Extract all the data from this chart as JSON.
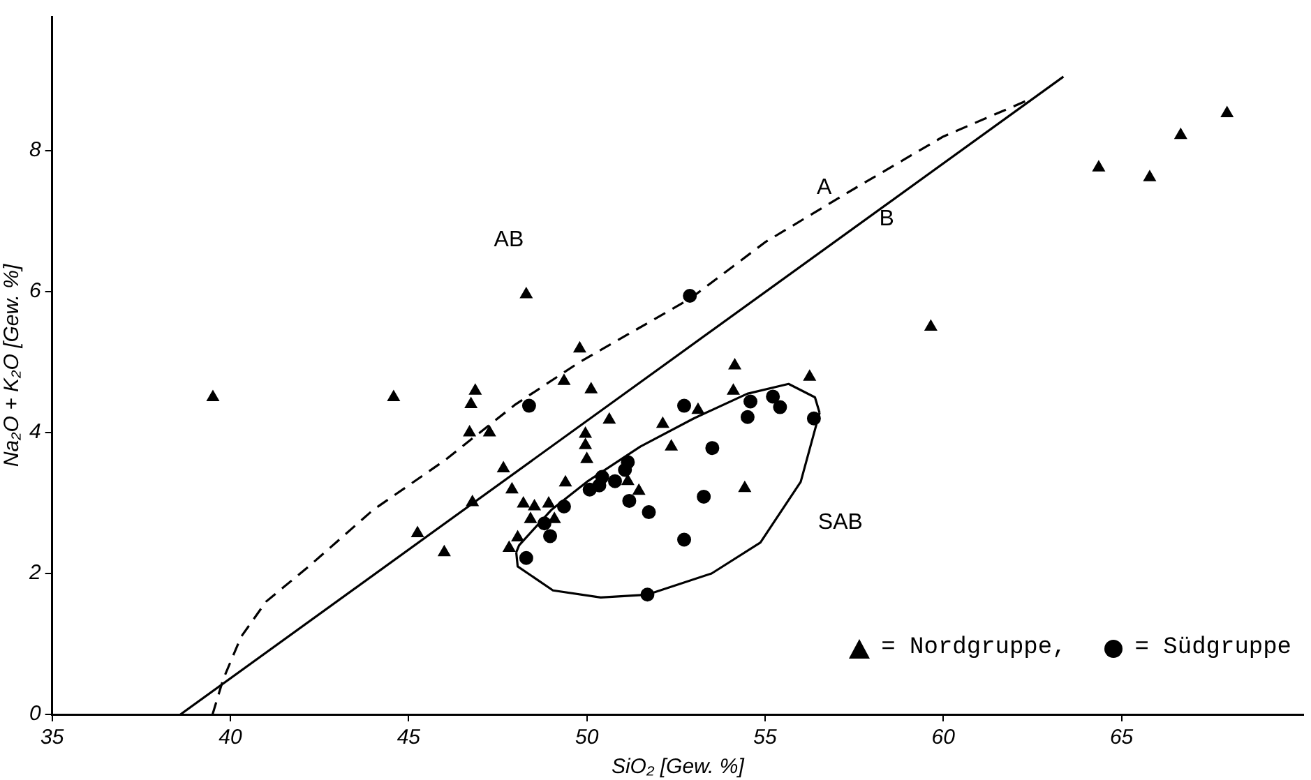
{
  "chart_data": {
    "type": "scatter",
    "xlabel": "SiO₂ [Gew. %]",
    "ylabel": "Na₂O + K₂O [Gew. %]",
    "xlim": [
      35,
      70.1
    ],
    "ylim": [
      0,
      9.9
    ],
    "xticks": [
      35,
      40,
      45,
      50,
      55,
      60,
      65
    ],
    "yticks": [
      0,
      2,
      4,
      6,
      8
    ],
    "grid": false,
    "legend": "bottom right",
    "series": [
      {
        "name": "= Nordgruppe,",
        "type": "scatter",
        "marker": "triangle",
        "color": "#000000",
        "x": [
          39.51,
          44.58,
          46.87,
          46.75,
          46.71,
          47.27,
          49.36,
          50.12,
          50.63,
          49.96,
          49.96,
          50.0,
          47.66,
          47.9,
          49.4,
          48.22,
          48.53,
          48.93,
          48.42,
          49.09,
          48.06,
          47.82,
          46.79,
          45.25,
          46.0,
          54.15,
          56.25,
          54.11,
          53.12,
          52.13,
          52.37,
          51.15,
          51.46,
          54.43,
          48.3,
          49.8,
          59.65,
          64.36,
          65.79,
          66.66,
          67.96
        ],
        "values": [
          4.5,
          4.5,
          4.59,
          4.4,
          4.0,
          4.0,
          4.73,
          4.61,
          4.18,
          3.98,
          3.82,
          3.62,
          3.49,
          3.19,
          3.29,
          2.99,
          2.95,
          2.99,
          2.77,
          2.77,
          2.51,
          2.36,
          3.01,
          2.57,
          2.3,
          4.95,
          4.79,
          4.59,
          4.32,
          4.12,
          3.8,
          3.31,
          3.17,
          3.21,
          5.96,
          5.19,
          5.5,
          7.76,
          7.62,
          8.22,
          8.53
        ]
      },
      {
        "name": "= Südgruppe",
        "type": "scatter",
        "marker": "circle",
        "color": "#000000",
        "x": [
          48.38,
          49.36,
          48.81,
          48.97,
          48.3,
          50.08,
          50.35,
          50.43,
          50.79,
          52.73,
          54.59,
          55.22,
          55.42,
          54.51,
          56.37,
          53.52,
          51.15,
          51.07,
          51.19,
          51.74,
          53.28,
          52.73,
          51.7,
          52.89
        ],
        "values": [
          4.38,
          2.95,
          2.71,
          2.53,
          2.22,
          3.19,
          3.25,
          3.37,
          3.31,
          4.38,
          4.44,
          4.51,
          4.36,
          4.22,
          4.2,
          3.78,
          3.58,
          3.47,
          3.03,
          2.87,
          3.09,
          2.48,
          1.7,
          5.94
        ]
      },
      {
        "type": "line",
        "line_style": "solid",
        "marker": "none",
        "color": "#000000",
        "x": [
          38.6,
          63.37
        ],
        "values": [
          0,
          9.05
        ]
      },
      {
        "type": "line",
        "line_style": "dashed",
        "marker": "none",
        "color": "#000000",
        "x": [
          39.5,
          39.8,
          40.3,
          41.0,
          42.2,
          44.0,
          46.0,
          48.0,
          49.8,
          52.9,
          55.0,
          57.3,
          60.0,
          62.3
        ],
        "values": [
          0,
          0.5,
          1.1,
          1.6,
          2.1,
          2.9,
          3.6,
          4.4,
          5.0,
          5.9,
          6.7,
          7.4,
          8.2,
          8.7
        ]
      },
      {
        "type": "line",
        "line_style": "solid",
        "marker": "none",
        "color": "#000000",
        "x": [
          48.02,
          48.1,
          49.0,
          50.0,
          51.5,
          53.0,
          54.5,
          55.66,
          56.4,
          56.53
        ],
        "values": [
          2.3,
          2.4,
          2.9,
          3.3,
          3.8,
          4.2,
          4.55,
          4.69,
          4.5,
          4.28
        ]
      },
      {
        "type": "line",
        "line_style": "solid",
        "marker": "none",
        "color": "#000000",
        "x": [
          48.02,
          48.06,
          49.05,
          50.39,
          51.7,
          53.5,
          54.87,
          56.0,
          56.53
        ],
        "values": [
          2.3,
          2.1,
          1.76,
          1.66,
          1.7,
          2.0,
          2.44,
          3.3,
          4.28
        ]
      }
    ],
    "annotations": [
      "AB",
      "A",
      "B",
      "SAB"
    ]
  }
}
